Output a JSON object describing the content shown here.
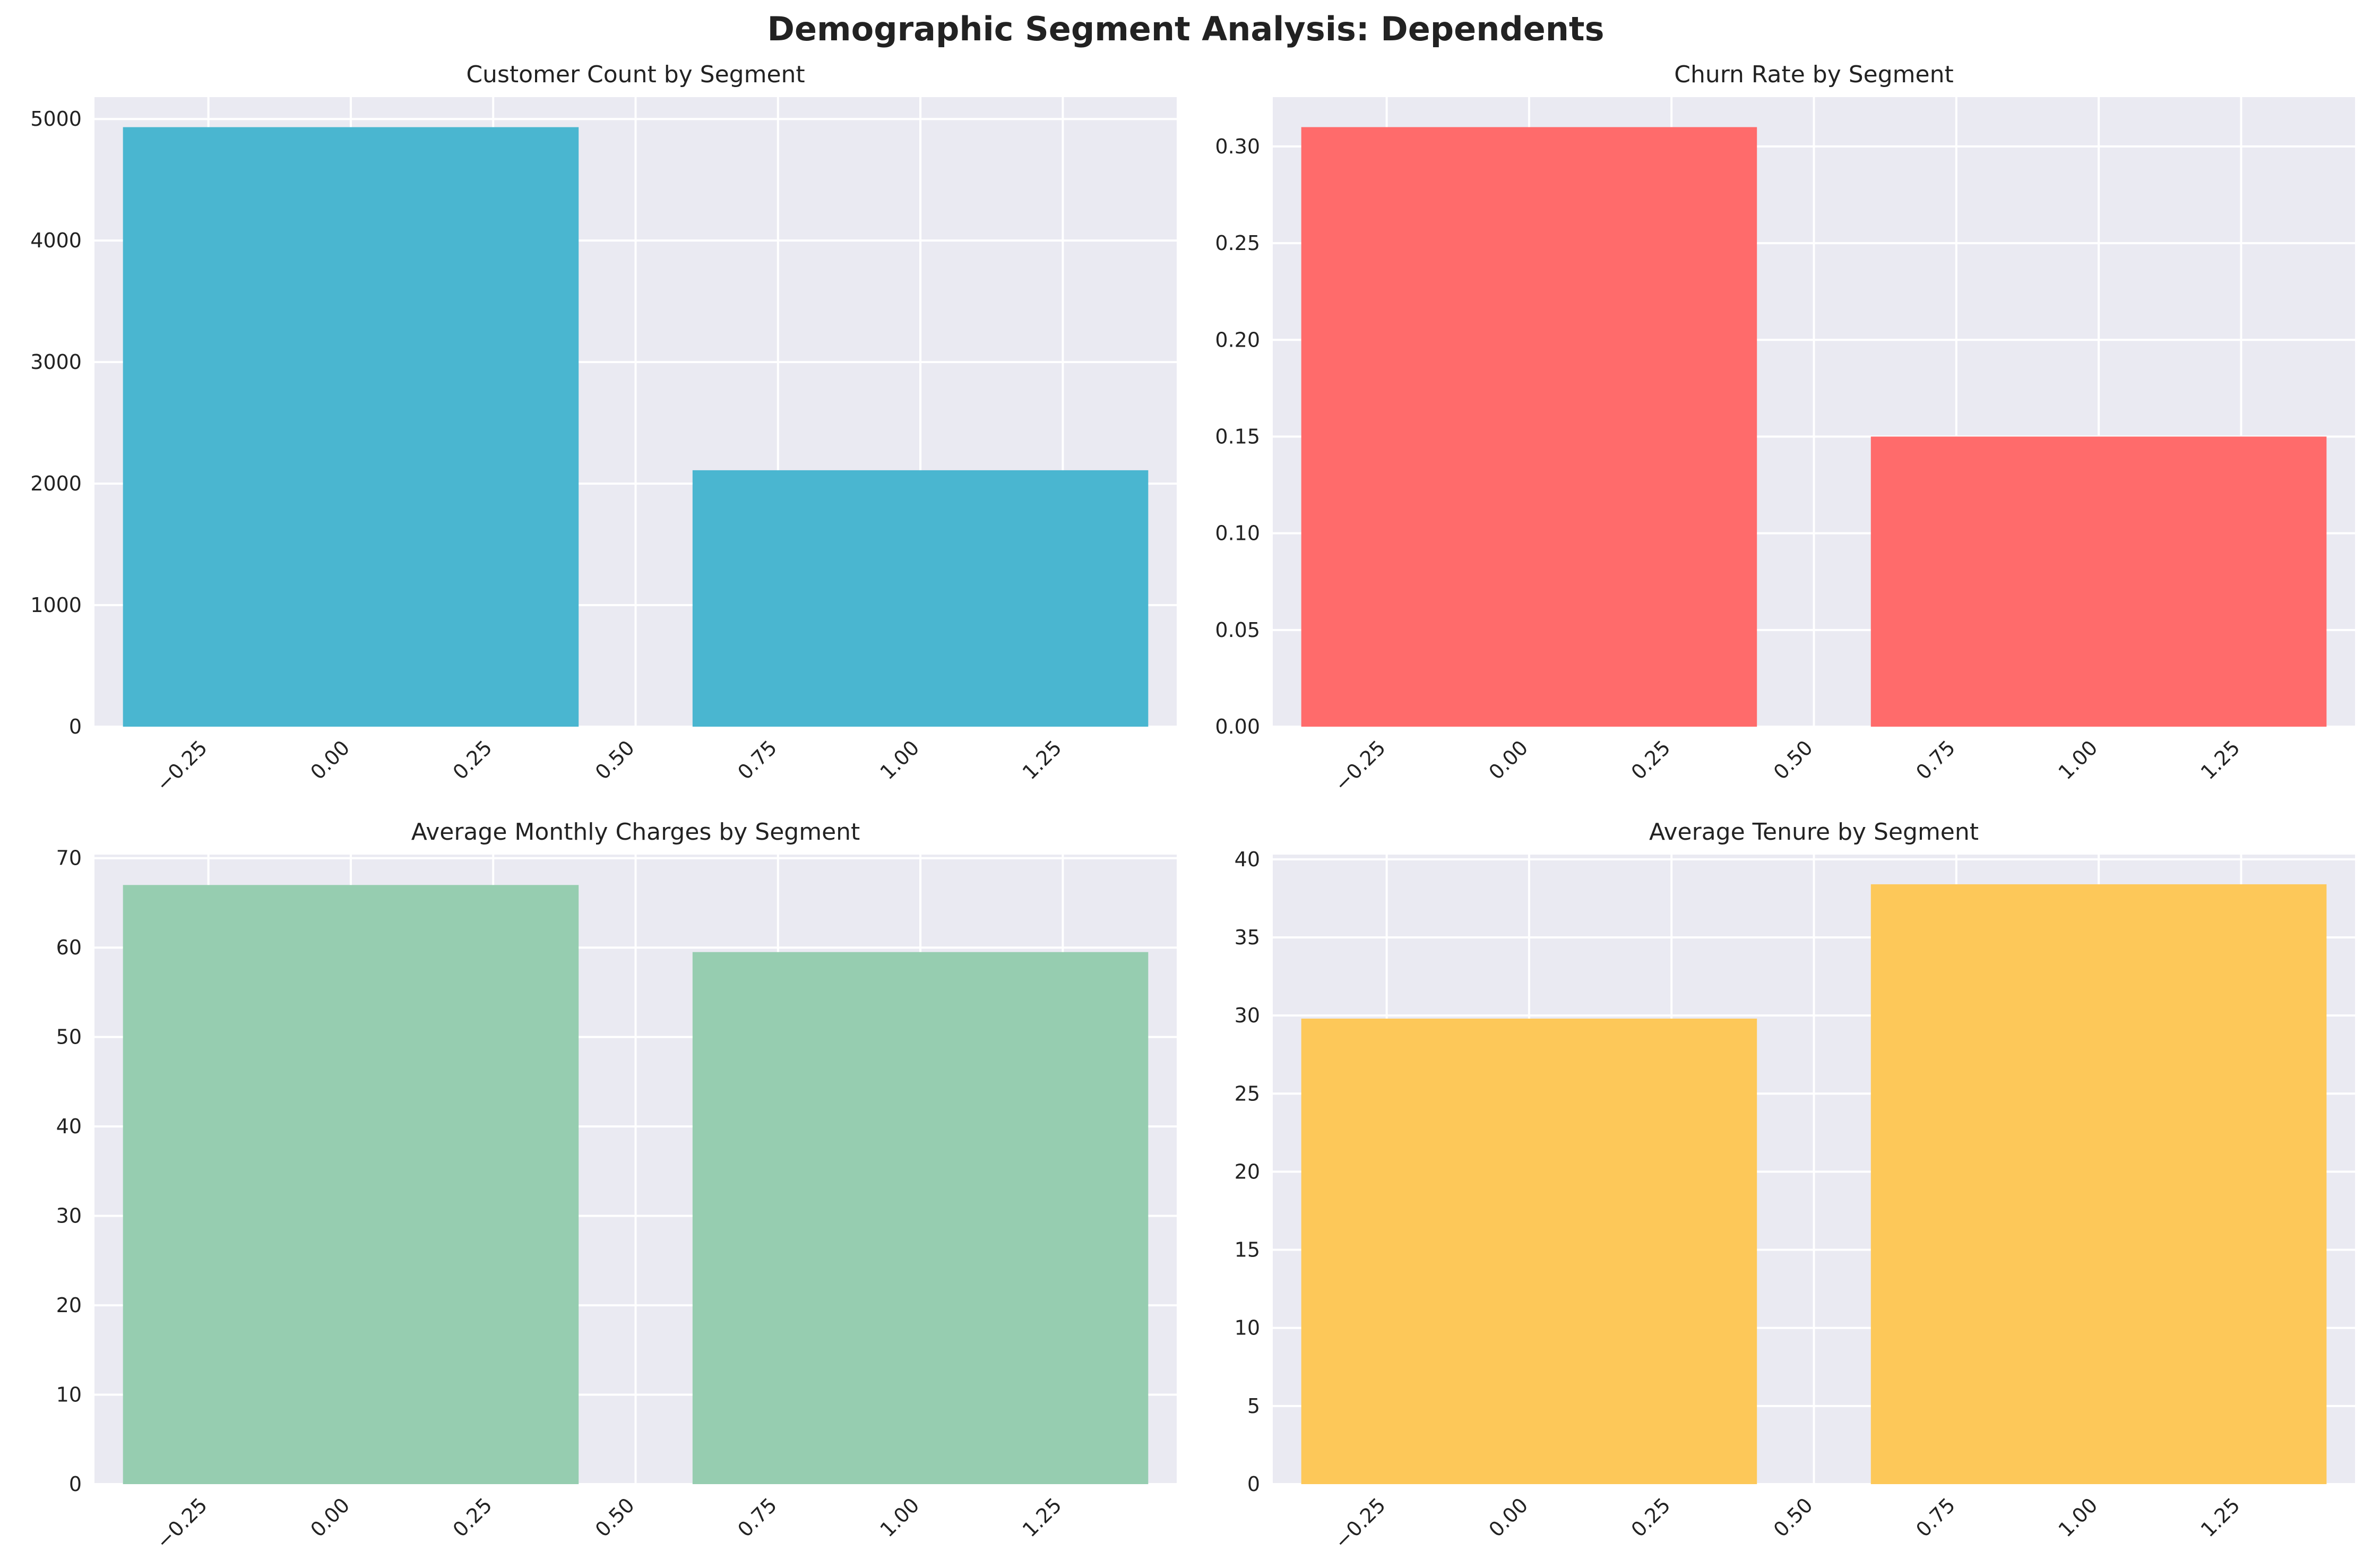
{
  "figure_title": "Demographic Segment Analysis: Dependents",
  "chart_data": [
    {
      "type": "bar",
      "title": "Customer Count by Segment",
      "x": [
        0,
        1
      ],
      "values": [
        4933,
        2110
      ],
      "bar_width": 0.8,
      "color": "#4ab6d0",
      "xlim": [
        -0.45,
        1.45
      ],
      "ylim": [
        0,
        5180
      ],
      "xticks": [
        -0.25,
        0.0,
        0.25,
        0.5,
        0.75,
        1.0,
        1.25
      ],
      "xtick_labels": [
        "−0.25",
        "0.00",
        "0.25",
        "0.50",
        "0.75",
        "1.00",
        "1.25"
      ],
      "yticks": [
        0,
        1000,
        2000,
        3000,
        4000,
        5000
      ],
      "ytick_labels": [
        "0",
        "1000",
        "2000",
        "3000",
        "4000",
        "5000"
      ],
      "grid": true
    },
    {
      "type": "bar",
      "title": "Churn Rate by Segment",
      "x": [
        0,
        1
      ],
      "values": [
        0.31,
        0.15
      ],
      "bar_width": 0.8,
      "color": "#ff6b6b",
      "xlim": [
        -0.45,
        1.45
      ],
      "ylim": [
        0,
        0.3255
      ],
      "xticks": [
        -0.25,
        0.0,
        0.25,
        0.5,
        0.75,
        1.0,
        1.25
      ],
      "xtick_labels": [
        "−0.25",
        "0.00",
        "0.25",
        "0.50",
        "0.75",
        "1.00",
        "1.25"
      ],
      "yticks": [
        0,
        0.05,
        0.1,
        0.15,
        0.2,
        0.25,
        0.3
      ],
      "ytick_labels": [
        "0.00",
        "0.05",
        "0.10",
        "0.15",
        "0.20",
        "0.25",
        "0.30"
      ],
      "grid": true
    },
    {
      "type": "bar",
      "title": "Average Monthly Charges by Segment",
      "x": [
        0,
        1
      ],
      "values": [
        67.0,
        59.5
      ],
      "bar_width": 0.8,
      "color": "#96cdb0",
      "xlim": [
        -0.45,
        1.45
      ],
      "ylim": [
        0,
        70.4
      ],
      "xticks": [
        -0.25,
        0.0,
        0.25,
        0.5,
        0.75,
        1.0,
        1.25
      ],
      "xtick_labels": [
        "−0.25",
        "0.00",
        "0.25",
        "0.50",
        "0.75",
        "1.00",
        "1.25"
      ],
      "yticks": [
        0,
        10,
        20,
        30,
        40,
        50,
        60,
        70
      ],
      "ytick_labels": [
        "0",
        "10",
        "20",
        "30",
        "40",
        "50",
        "60",
        "70"
      ],
      "grid": true
    },
    {
      "type": "bar",
      "title": "Average Tenure by Segment",
      "x": [
        0,
        1
      ],
      "values": [
        29.8,
        38.4
      ],
      "bar_width": 0.8,
      "color": "#fdc859",
      "xlim": [
        -0.45,
        1.45
      ],
      "ylim": [
        0,
        40.3
      ],
      "xticks": [
        -0.25,
        0.0,
        0.25,
        0.5,
        0.75,
        1.0,
        1.25
      ],
      "xtick_labels": [
        "−0.25",
        "0.00",
        "0.25",
        "0.50",
        "0.75",
        "1.00",
        "1.25"
      ],
      "yticks": [
        0,
        5,
        10,
        15,
        20,
        25,
        30,
        35,
        40
      ],
      "ytick_labels": [
        "0",
        "5",
        "10",
        "15",
        "20",
        "25",
        "30",
        "35",
        "40"
      ],
      "grid": true
    }
  ]
}
